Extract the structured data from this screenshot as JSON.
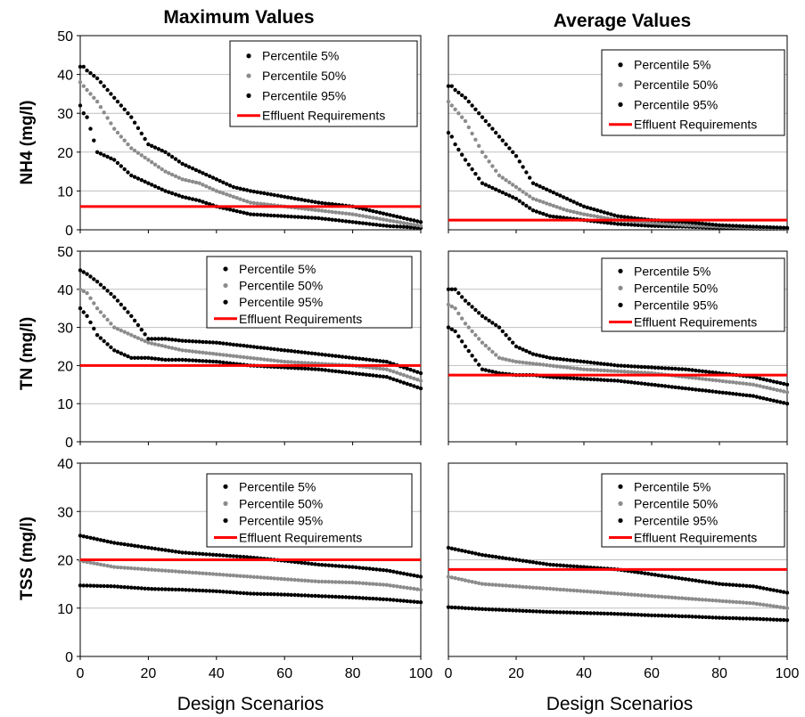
{
  "column_titles": [
    "Maximum Values",
    "Average Values"
  ],
  "row_ylabels": [
    "NH4 (mg/l)",
    "TN (mg/l)",
    "TSS (mg/l)"
  ],
  "xlabel": "Design Scenarios",
  "legend_labels": [
    "Percentile 5%",
    "Percentile 50%",
    "Percentile 95%",
    "Effluent Requirements"
  ],
  "colors": {
    "p5": "#000000",
    "p50": "#8c8c8c",
    "p95": "#000000",
    "effluent": "#ff0000",
    "grid": "#bfbfbf"
  },
  "chart_data": [
    {
      "type": "scatter",
      "row": 0,
      "col": 0,
      "ylabel": "NH4 (mg/l)",
      "xlabel": "",
      "xlim": [
        0,
        100
      ],
      "ylim": [
        0,
        50
      ],
      "xticks": [
        0,
        20,
        40,
        60,
        80,
        100
      ],
      "yticks": [
        0,
        10,
        20,
        30,
        40,
        50
      ],
      "legend": "top-right",
      "grid": "horizontal",
      "series": [
        {
          "name": "Percentile 5%",
          "x": [
            0,
            1,
            2,
            5,
            10,
            15,
            20,
            25,
            30,
            35,
            40,
            45,
            50,
            60,
            70,
            80,
            90,
            100
          ],
          "y": [
            32,
            30,
            29,
            20,
            18,
            14,
            12,
            10,
            8.5,
            7.5,
            6,
            5,
            4,
            3.5,
            3,
            2,
            1,
            0.5
          ]
        },
        {
          "name": "Percentile 50%",
          "x": [
            0,
            1,
            2,
            5,
            10,
            15,
            20,
            25,
            30,
            35,
            40,
            45,
            50,
            60,
            70,
            80,
            90,
            100
          ],
          "y": [
            38,
            37,
            36,
            33,
            26,
            21,
            18,
            15,
            13,
            12,
            10,
            8.5,
            7,
            6,
            5,
            4,
            2.5,
            1
          ]
        },
        {
          "name": "Percentile 95%",
          "x": [
            0,
            1,
            2,
            5,
            10,
            15,
            20,
            25,
            30,
            35,
            40,
            45,
            50,
            60,
            70,
            80,
            90,
            100
          ],
          "y": [
            42,
            42,
            41,
            39,
            34,
            29,
            22,
            20,
            17,
            15,
            13,
            11,
            10,
            8.5,
            7,
            6,
            4,
            2
          ]
        },
        {
          "name": "Effluent Requirements",
          "x": [
            0,
            100
          ],
          "y": [
            6,
            6
          ]
        }
      ]
    },
    {
      "type": "scatter",
      "row": 0,
      "col": 1,
      "ylabel": "",
      "xlabel": "",
      "xlim": [
        0,
        100
      ],
      "ylim": [
        0,
        50
      ],
      "xticks": [
        0,
        20,
        40,
        60,
        80,
        100
      ],
      "yticks": [
        0,
        10,
        20,
        30,
        40,
        50
      ],
      "legend": "top-right",
      "grid": "horizontal",
      "series": [
        {
          "name": "Percentile 5%",
          "x": [
            0,
            1,
            2,
            5,
            10,
            15,
            20,
            25,
            30,
            35,
            40,
            50,
            60,
            70,
            80,
            90,
            100
          ],
          "y": [
            25,
            24,
            22,
            18,
            12,
            10,
            8,
            5,
            3.5,
            3,
            2.5,
            1.5,
            1,
            0.8,
            0.5,
            0.3,
            0.2
          ]
        },
        {
          "name": "Percentile 50%",
          "x": [
            0,
            1,
            2,
            5,
            10,
            15,
            20,
            25,
            30,
            35,
            40,
            50,
            60,
            70,
            80,
            90,
            100
          ],
          "y": [
            33,
            32,
            31,
            28,
            20,
            14,
            11,
            8,
            6.5,
            5,
            4,
            2.5,
            1.8,
            1.2,
            0.8,
            0.5,
            0.3
          ]
        },
        {
          "name": "Percentile 95%",
          "x": [
            0,
            1,
            2,
            5,
            10,
            15,
            20,
            25,
            30,
            35,
            40,
            50,
            60,
            70,
            80,
            90,
            100
          ],
          "y": [
            37,
            37,
            36,
            34,
            29,
            24,
            19,
            12,
            10,
            8,
            6,
            3.5,
            2.5,
            2,
            1.2,
            0.8,
            0.5
          ]
        },
        {
          "name": "Effluent Requirements",
          "x": [
            0,
            100
          ],
          "y": [
            2.5,
            2.5
          ]
        }
      ]
    },
    {
      "type": "scatter",
      "row": 1,
      "col": 0,
      "ylabel": "TN (mg/l)",
      "xlabel": "",
      "xlim": [
        0,
        100
      ],
      "ylim": [
        0,
        50
      ],
      "xticks": [
        0,
        20,
        40,
        60,
        80,
        100
      ],
      "yticks": [
        0,
        10,
        20,
        30,
        40,
        50
      ],
      "legend": "top-right",
      "grid": "horizontal",
      "series": [
        {
          "name": "Percentile 5%",
          "x": [
            0,
            2,
            5,
            10,
            15,
            20,
            25,
            30,
            40,
            50,
            60,
            70,
            80,
            90,
            100
          ],
          "y": [
            35,
            33,
            28,
            24,
            22,
            22,
            21.5,
            21.5,
            21,
            20,
            19.5,
            19,
            18,
            17,
            14
          ]
        },
        {
          "name": "Percentile 50%",
          "x": [
            0,
            2,
            5,
            10,
            15,
            20,
            25,
            30,
            40,
            50,
            60,
            70,
            80,
            90,
            100
          ],
          "y": [
            40,
            39,
            35,
            30,
            28,
            26,
            25,
            24,
            23,
            22,
            21,
            20.5,
            20,
            19,
            16
          ]
        },
        {
          "name": "Percentile 95%",
          "x": [
            0,
            2,
            5,
            10,
            15,
            20,
            25,
            30,
            40,
            50,
            60,
            70,
            80,
            90,
            100
          ],
          "y": [
            45,
            44,
            42,
            38,
            33,
            27,
            27,
            26.5,
            26,
            25,
            24,
            23,
            22,
            21,
            18
          ]
        },
        {
          "name": "Effluent Requirements",
          "x": [
            0,
            100
          ],
          "y": [
            20,
            20
          ]
        }
      ]
    },
    {
      "type": "scatter",
      "row": 1,
      "col": 1,
      "ylabel": "",
      "xlabel": "",
      "xlim": [
        0,
        100
      ],
      "ylim": [
        0,
        50
      ],
      "xticks": [
        0,
        20,
        40,
        60,
        80,
        100
      ],
      "yticks": [
        0,
        10,
        20,
        30,
        40,
        50
      ],
      "legend": "top-right",
      "grid": "horizontal",
      "series": [
        {
          "name": "Percentile 5%",
          "x": [
            0,
            2,
            5,
            10,
            15,
            20,
            25,
            30,
            40,
            50,
            60,
            70,
            80,
            90,
            100
          ],
          "y": [
            30,
            29,
            25,
            19,
            18,
            17.5,
            17.5,
            17,
            16.5,
            16,
            15,
            14,
            13,
            12,
            10
          ]
        },
        {
          "name": "Percentile 50%",
          "x": [
            0,
            2,
            5,
            10,
            15,
            20,
            25,
            30,
            40,
            50,
            60,
            70,
            80,
            90,
            100
          ],
          "y": [
            36,
            35,
            31,
            26,
            22,
            21,
            20.5,
            20,
            19,
            18.5,
            18,
            17,
            16,
            15,
            13
          ]
        },
        {
          "name": "Percentile 95%",
          "x": [
            0,
            2,
            5,
            10,
            15,
            20,
            25,
            30,
            40,
            50,
            60,
            70,
            80,
            90,
            100
          ],
          "y": [
            40,
            40,
            37,
            33,
            30,
            25,
            23,
            22,
            21,
            20,
            19.5,
            19,
            18,
            17,
            15
          ]
        },
        {
          "name": "Effluent Requirements",
          "x": [
            0,
            100
          ],
          "y": [
            17.5,
            17.5
          ]
        }
      ]
    },
    {
      "type": "scatter",
      "row": 2,
      "col": 0,
      "ylabel": "TSS (mg/l)",
      "xlabel": "Design Scenarios",
      "xlim": [
        0,
        100
      ],
      "ylim": [
        0,
        40
      ],
      "xticks": [
        0,
        20,
        40,
        60,
        80,
        100
      ],
      "yticks": [
        0,
        10,
        20,
        30,
        40
      ],
      "legend": "top-right",
      "grid": "horizontal",
      "series": [
        {
          "name": "Percentile 5%",
          "x": [
            0,
            10,
            20,
            30,
            40,
            50,
            60,
            70,
            80,
            90,
            100
          ],
          "y": [
            14.7,
            14.5,
            14,
            13.8,
            13.5,
            13,
            12.8,
            12.5,
            12.2,
            11.8,
            11.2
          ]
        },
        {
          "name": "Percentile 50%",
          "x": [
            0,
            10,
            20,
            30,
            40,
            50,
            60,
            70,
            80,
            90,
            100
          ],
          "y": [
            19.8,
            18.5,
            18,
            17.5,
            17,
            16.5,
            16,
            15.5,
            15.3,
            14.8,
            13.8
          ]
        },
        {
          "name": "Percentile 95%",
          "x": [
            0,
            10,
            20,
            30,
            40,
            50,
            60,
            70,
            80,
            90,
            100
          ],
          "y": [
            25,
            23.5,
            22.5,
            21.5,
            21,
            20.5,
            19.8,
            19,
            18.5,
            17.8,
            16.5
          ]
        },
        {
          "name": "Effluent Requirements",
          "x": [
            0,
            100
          ],
          "y": [
            20,
            20
          ]
        }
      ]
    },
    {
      "type": "scatter",
      "row": 2,
      "col": 1,
      "ylabel": "",
      "xlabel": "Design Scenarios",
      "xlim": [
        0,
        100
      ],
      "ylim": [
        0,
        40
      ],
      "xticks": [
        0,
        20,
        40,
        60,
        80,
        100
      ],
      "yticks": [
        0,
        10,
        20,
        30,
        40
      ],
      "legend": "top-right",
      "grid": "horizontal",
      "series": [
        {
          "name": "Percentile 5%",
          "x": [
            0,
            10,
            20,
            30,
            40,
            50,
            60,
            70,
            80,
            90,
            100
          ],
          "y": [
            10.2,
            9.8,
            9.5,
            9.2,
            9,
            8.8,
            8.5,
            8.3,
            8,
            7.8,
            7.5
          ]
        },
        {
          "name": "Percentile 50%",
          "x": [
            0,
            10,
            20,
            30,
            40,
            50,
            60,
            70,
            80,
            90,
            100
          ],
          "y": [
            16.5,
            15,
            14.5,
            14,
            13.5,
            13,
            12.5,
            12,
            11.5,
            11,
            10
          ]
        },
        {
          "name": "Percentile 95%",
          "x": [
            0,
            10,
            20,
            30,
            40,
            50,
            60,
            70,
            80,
            90,
            100
          ],
          "y": [
            22.5,
            21,
            20,
            19,
            18.5,
            18,
            17,
            16,
            15,
            14.5,
            13.2
          ]
        },
        {
          "name": "Effluent Requirements",
          "x": [
            0,
            100
          ],
          "y": [
            18,
            18
          ]
        }
      ]
    }
  ]
}
